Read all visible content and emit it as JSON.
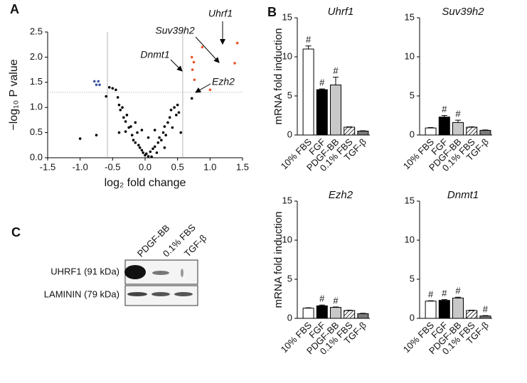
{
  "panels": [
    "A",
    "B",
    "C"
  ],
  "chart_data": [
    {
      "type": "scatter",
      "xlabel": "log₂ fold change",
      "ylabel": "−log₁₀ P value",
      "xlim": [
        -1.5,
        1.5
      ],
      "xticks": [
        -1.5,
        {
          "value": -1,
          "label": "-1.0"
        },
        -0.5,
        {
          "value": 0,
          "label": "0.0"
        },
        0.5,
        {
          "value": 1,
          "label": "1.0"
        },
        1.5
      ],
      "ylim": [
        0,
        2.5
      ],
      "yticks": [
        {
          "value": 0,
          "label": "0.0"
        },
        0.5,
        {
          "value": 1,
          "label": "1.0"
        },
        1.5,
        {
          "value": 2,
          "label": "2.0"
        },
        2.5
      ],
      "vlines": [
        -0.58,
        0.58
      ],
      "hline": 1.3,
      "series": [
        {
          "color": "#000000",
          "x": [
            -1.0,
            -0.75,
            -0.6,
            -0.55,
            -0.5,
            -0.45,
            -0.42,
            -0.4,
            -0.38,
            -0.35,
            -0.33,
            -0.3,
            -0.28,
            -0.25,
            -0.3,
            -0.2,
            -0.22,
            -0.18,
            -0.15,
            -0.12,
            -0.1,
            -0.08,
            -0.05,
            -0.03,
            0.0,
            0.02,
            0.05,
            0.08,
            0.1,
            0.12,
            0.15,
            0.18,
            0.2,
            0.22,
            0.25,
            0.28,
            0.3,
            0.32,
            0.35,
            0.38,
            0.4,
            0.42,
            0.45,
            0.48,
            0.5,
            0.52,
            0.55,
            0.72,
            -0.05,
            0.05,
            -0.15,
            0.15,
            -0.4,
            0.3
          ],
          "values": [
            0.38,
            0.45,
            1.22,
            1.4,
            1.38,
            1.35,
            1.2,
            1.05,
            0.95,
            1.0,
            0.8,
            0.72,
            0.85,
            0.6,
            0.52,
            0.45,
            0.62,
            0.35,
            0.3,
            0.5,
            0.25,
            0.2,
            0.15,
            0.1,
            0.05,
            0.08,
            0.03,
            0.12,
            0.02,
            0.18,
            0.22,
            0.1,
            0.3,
            0.4,
            0.35,
            0.5,
            0.62,
            0.45,
            0.7,
            0.8,
            0.95,
            0.6,
            1.0,
            0.85,
            1.05,
            0.9,
            0.5,
            1.18,
            0.55,
            0.4,
            0.7,
            0.55,
            0.5,
            0.2
          ]
        },
        {
          "color": "#3a55a0",
          "x": [
            -0.78,
            -0.75,
            -0.72,
            -0.7
          ],
          "values": [
            1.52,
            1.45,
            1.52,
            1.45
          ]
        },
        {
          "color": "#e8542a",
          "x": [
            0.75,
            0.73,
            0.76,
            0.88,
            1.38,
            1.42,
            1.0,
            0.72
          ],
          "values": [
            1.9,
            1.75,
            1.55,
            2.2,
            1.88,
            2.28,
            1.35,
            2.0
          ]
        }
      ],
      "annotations": [
        "Uhrf1",
        "Suv39h2",
        "Dnmt1",
        "Ezh2"
      ]
    },
    {
      "type": "bar",
      "title": "Uhrf1",
      "ylabel": "mRNA fold induction",
      "categories": [
        "10% FBS",
        "FGF",
        "PDGF-BB",
        "0.1% FBS",
        "TGF-β"
      ],
      "values": [
        11.0,
        5.8,
        6.4,
        1.0,
        0.5
      ],
      "errors": [
        0.4,
        0.1,
        1.0,
        0.05,
        0.05
      ],
      "colors": [
        "#ffffff",
        "#000000",
        "#c8c8c8",
        "#ffffff",
        "#7a7a7a"
      ],
      "hatched": [
        false,
        false,
        false,
        true,
        false
      ],
      "significance": [
        "#",
        "#",
        "#",
        null,
        null
      ],
      "ylim": [
        0,
        15
      ],
      "yticks": [
        0,
        5,
        10,
        15
      ]
    },
    {
      "type": "bar",
      "title": "Suv39h2",
      "categories": [
        "10% FBS",
        "FGF",
        "PDGF-BB",
        "0.1% FBS",
        "TGF-β"
      ],
      "values": [
        0.9,
        2.3,
        1.6,
        1.0,
        0.6
      ],
      "errors": [
        0.05,
        0.2,
        0.3,
        0.05,
        0.05
      ],
      "colors": [
        "#ffffff",
        "#000000",
        "#c8c8c8",
        "#ffffff",
        "#7a7a7a"
      ],
      "hatched": [
        false,
        false,
        false,
        true,
        false
      ],
      "significance": [
        null,
        "#",
        "#",
        null,
        null
      ],
      "ylim": [
        0,
        15
      ],
      "yticks": [
        0,
        5,
        10,
        15
      ]
    },
    {
      "type": "bar",
      "title": "Ezh2",
      "ylabel": "mRNA fold induction",
      "categories": [
        "10% FBS",
        "FGF",
        "PDGF-BB",
        "0.1% FBS",
        "TGF-β"
      ],
      "values": [
        1.3,
        1.6,
        1.4,
        1.0,
        0.6
      ],
      "errors": [
        0.05,
        0.1,
        0.05,
        0.05,
        0.05
      ],
      "colors": [
        "#ffffff",
        "#000000",
        "#c8c8c8",
        "#ffffff",
        "#7a7a7a"
      ],
      "hatched": [
        false,
        false,
        false,
        true,
        false
      ],
      "significance": [
        null,
        "#",
        "#",
        null,
        null
      ],
      "ylim": [
        0,
        15
      ],
      "yticks": [
        0,
        5,
        10,
        15
      ]
    },
    {
      "type": "bar",
      "title": "Dnmt1",
      "categories": [
        "10% FBS",
        "FGF",
        "PDGF-BB",
        "0.1% FBS",
        "TGF-β"
      ],
      "values": [
        2.2,
        2.3,
        2.6,
        1.0,
        0.3
      ],
      "errors": [
        0.05,
        0.1,
        0.1,
        0.05,
        0.05
      ],
      "colors": [
        "#ffffff",
        "#000000",
        "#c8c8c8",
        "#ffffff",
        "#7a7a7a"
      ],
      "hatched": [
        false,
        false,
        false,
        true,
        false
      ],
      "significance": [
        "#",
        "#",
        "#",
        null,
        "#"
      ],
      "ylim": [
        0,
        15
      ],
      "yticks": [
        0,
        5,
        10,
        15
      ]
    }
  ],
  "blot": {
    "columns": [
      "PDGF-BB",
      "0.1% FBS",
      "TGF-β"
    ],
    "rows": [
      "UHRF1 (91 kDa)",
      "LAMININ (79 kDa)"
    ]
  }
}
